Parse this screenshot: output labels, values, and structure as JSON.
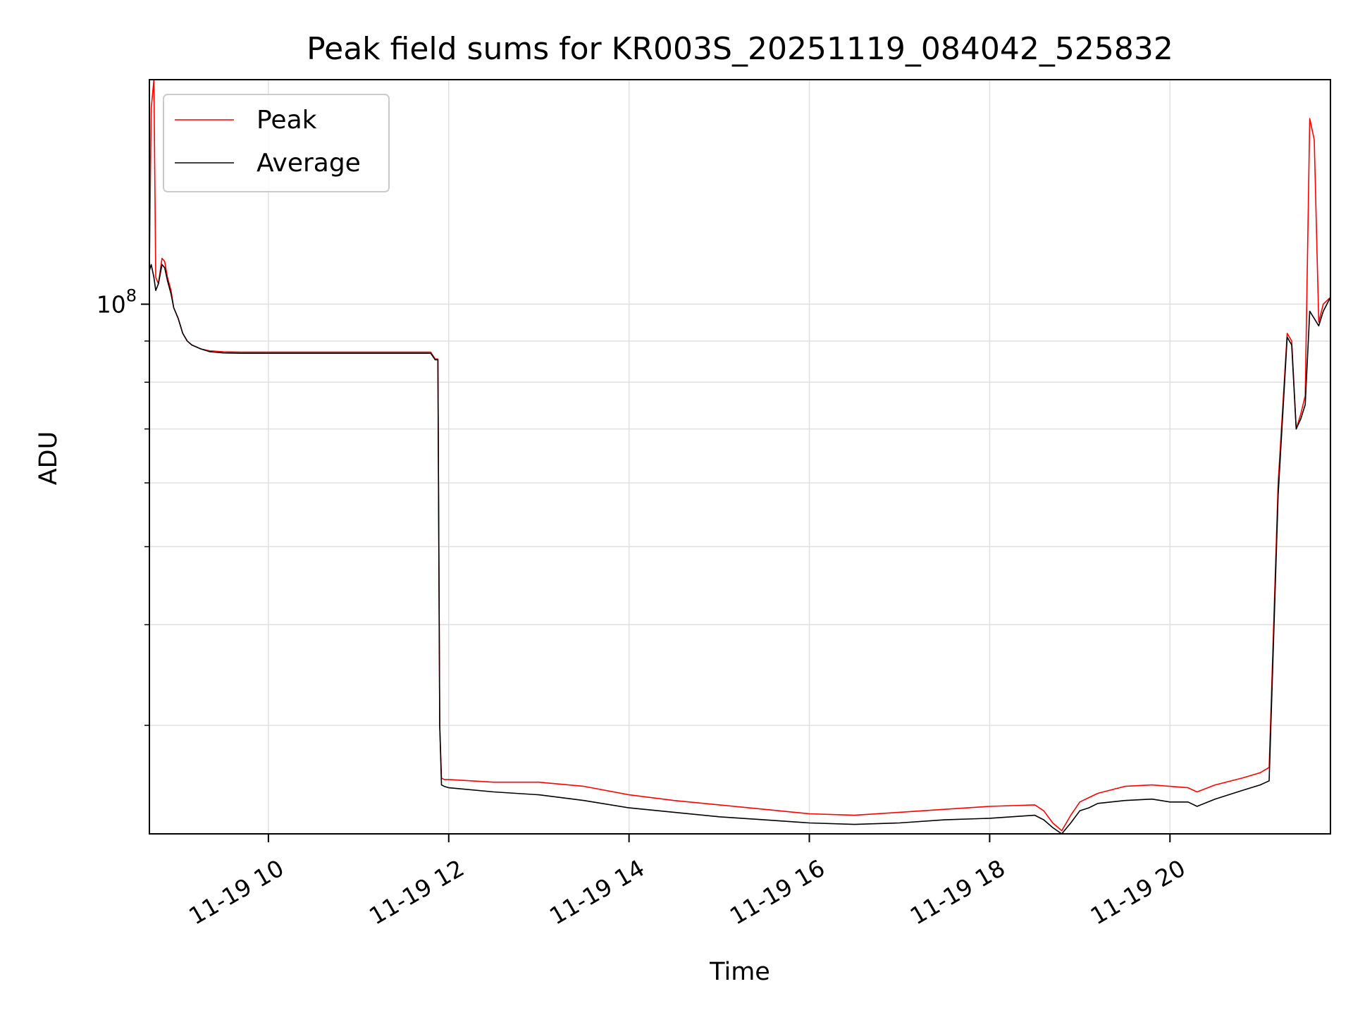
{
  "chart_data": {
    "type": "line",
    "title": "Peak field sums for KR003S_20251119_084042_525832",
    "xlabel": "Time",
    "ylabel": "ADU",
    "yscale": "log",
    "ylim": [
      22000000,
      190000000
    ],
    "xlim": [
      8.68,
      21.78
    ],
    "x_units": "hour of 2025-11-19",
    "x_ticks": [
      {
        "value": 10,
        "label": "11-19 10"
      },
      {
        "value": 12,
        "label": "11-19 12"
      },
      {
        "value": 14,
        "label": "11-19 14"
      },
      {
        "value": 16,
        "label": "11-19 16"
      },
      {
        "value": 18,
        "label": "11-19 18"
      },
      {
        "value": 20,
        "label": "11-19 20"
      }
    ],
    "y_ticks": [
      {
        "value": 100000000,
        "base": "10",
        "exp": "8"
      }
    ],
    "y_minor_ticks": [
      30000000,
      40000000,
      50000000,
      60000000,
      70000000,
      80000000,
      90000000
    ],
    "grid": true,
    "legend": {
      "placement": "upper left",
      "entries": [
        "Peak",
        "Average"
      ]
    },
    "series": [
      {
        "name": "Peak",
        "color": "#ff0000",
        "x": [
          8.68,
          8.7,
          8.73,
          8.75,
          8.78,
          8.82,
          8.85,
          8.88,
          8.92,
          8.95,
          9.0,
          9.05,
          9.1,
          9.15,
          9.25,
          9.35,
          9.5,
          9.7,
          10.0,
          10.5,
          11.0,
          11.5,
          11.8,
          11.85,
          11.88,
          11.9,
          11.92,
          11.95,
          12.0,
          12.5,
          13.0,
          13.5,
          14.0,
          14.5,
          15.0,
          15.5,
          16.0,
          16.5,
          17.0,
          17.5,
          18.0,
          18.5,
          18.6,
          18.7,
          18.8,
          18.9,
          19.0,
          19.1,
          19.2,
          19.5,
          19.8,
          20.0,
          20.2,
          20.3,
          20.5,
          20.8,
          21.0,
          21.1,
          21.2,
          21.3,
          21.35,
          21.4,
          21.45,
          21.5,
          21.55,
          21.6,
          21.65,
          21.7,
          21.78
        ],
        "y": [
          110000000,
          175000000,
          190000000,
          108000000,
          106000000,
          114000000,
          113000000,
          108000000,
          104000000,
          99000000,
          96000000,
          92000000,
          90000000,
          89000000,
          88000000,
          87500000,
          87300000,
          87200000,
          87200000,
          87200000,
          87200000,
          87200000,
          87200000,
          85500000,
          85500000,
          30000000,
          25800000,
          25700000,
          25700000,
          25500000,
          25500000,
          25200000,
          24600000,
          24200000,
          23900000,
          23600000,
          23300000,
          23200000,
          23400000,
          23600000,
          23800000,
          23900000,
          23500000,
          22700000,
          22200000,
          23200000,
          24100000,
          24400000,
          24700000,
          25200000,
          25300000,
          25200000,
          25100000,
          24800000,
          25300000,
          25800000,
          26200000,
          26600000,
          60000000,
          92000000,
          90000000,
          70000000,
          73000000,
          77000000,
          170000000,
          160000000,
          95000000,
          100000000,
          102000000
        ]
      },
      {
        "name": "Average",
        "color": "#000000",
        "x": [
          8.68,
          8.7,
          8.73,
          8.75,
          8.78,
          8.82,
          8.85,
          8.88,
          8.92,
          8.95,
          9.0,
          9.05,
          9.1,
          9.15,
          9.25,
          9.35,
          9.5,
          9.7,
          10.0,
          10.5,
          11.0,
          11.5,
          11.8,
          11.85,
          11.88,
          11.9,
          11.92,
          11.95,
          12.0,
          12.5,
          13.0,
          13.5,
          14.0,
          14.5,
          15.0,
          15.5,
          16.0,
          16.5,
          17.0,
          17.5,
          18.0,
          18.5,
          18.6,
          18.7,
          18.8,
          18.9,
          19.0,
          19.1,
          19.2,
          19.5,
          19.8,
          20.0,
          20.2,
          20.3,
          20.5,
          20.8,
          21.0,
          21.1,
          21.2,
          21.3,
          21.35,
          21.4,
          21.45,
          21.5,
          21.55,
          21.6,
          21.65,
          21.7,
          21.78
        ],
        "y": [
          110000000,
          112000000,
          108000000,
          104000000,
          106000000,
          112000000,
          111000000,
          107000000,
          103000000,
          99000000,
          96000000,
          92000000,
          90000000,
          89000000,
          88000000,
          87300000,
          87000000,
          86900000,
          86900000,
          86900000,
          86900000,
          86900000,
          86900000,
          85300000,
          85300000,
          30000000,
          25300000,
          25200000,
          25100000,
          24800000,
          24600000,
          24200000,
          23700000,
          23400000,
          23100000,
          22900000,
          22700000,
          22600000,
          22700000,
          22900000,
          23000000,
          23200000,
          22900000,
          22400000,
          22000000,
          22700000,
          23500000,
          23700000,
          24000000,
          24200000,
          24300000,
          24100000,
          24100000,
          23800000,
          24300000,
          24900000,
          25300000,
          25600000,
          58000000,
          91000000,
          89000000,
          70000000,
          72000000,
          75000000,
          98000000,
          96000000,
          94000000,
          98000000,
          102000000
        ]
      }
    ]
  }
}
